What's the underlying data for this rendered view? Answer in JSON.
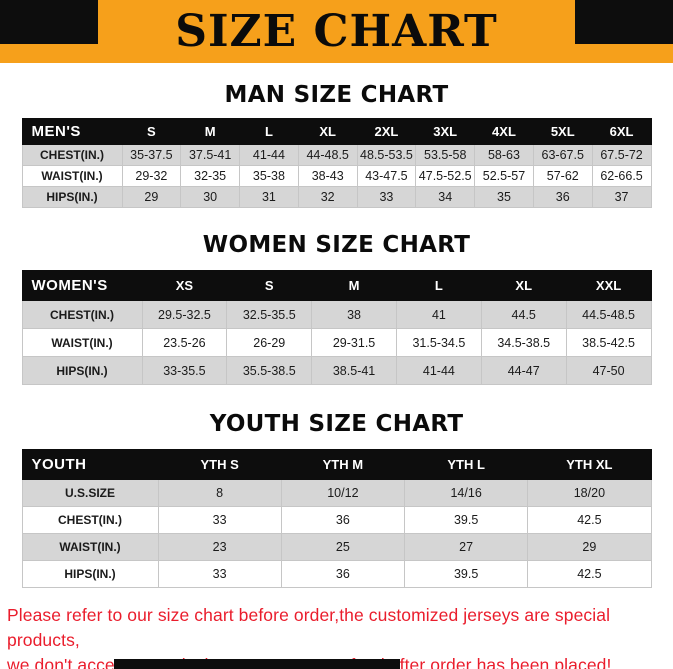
{
  "page": {
    "title": "SIZE CHART",
    "footer_line1": "Please refer to our size chart before order,the customized jerseys are special products,",
    "footer_line2": "we don't accept cancel, change, teturn or refund after order has been placed!"
  },
  "colors": {
    "banner_bg": "#f6a01b",
    "header_bg": "#0d0d0d",
    "row_alt_bg": "#d6d6d6",
    "footer_red": "#ea1d2c"
  },
  "chart_data": [
    {
      "type": "table",
      "title": "MAN SIZE CHART",
      "header": [
        "MEN'S",
        "S",
        "M",
        "L",
        "XL",
        "2XL",
        "3XL",
        "4XL",
        "5XL",
        "6XL"
      ],
      "rows": [
        [
          "CHEST(IN.)",
          "35-37.5",
          "37.5-41",
          "41-44",
          "44-48.5",
          "48.5-53.5",
          "53.5-58",
          "58-63",
          "63-67.5",
          "67.5-72"
        ],
        [
          "WAIST(IN.)",
          "29-32",
          "32-35",
          "35-38",
          "38-43",
          "43-47.5",
          "47.5-52.5",
          "52.5-57",
          "57-62",
          "62-66.5"
        ],
        [
          "HIPS(IN.)",
          "29",
          "30",
          "31",
          "32",
          "33",
          "34",
          "35",
          "36",
          "37"
        ]
      ]
    },
    {
      "type": "table",
      "title": "WOMEN SIZE CHART",
      "header": [
        "WOMEN'S",
        "XS",
        "S",
        "M",
        "L",
        "XL",
        "XXL"
      ],
      "rows": [
        [
          "CHEST(IN.)",
          "29.5-32.5",
          "32.5-35.5",
          "38",
          "41",
          "44.5",
          "44.5-48.5"
        ],
        [
          "WAIST(IN.)",
          "23.5-26",
          "26-29",
          "29-31.5",
          "31.5-34.5",
          "34.5-38.5",
          "38.5-42.5"
        ],
        [
          "HIPS(IN.)",
          "33-35.5",
          "35.5-38.5",
          "38.5-41",
          "41-44",
          "44-47",
          "47-50"
        ]
      ]
    },
    {
      "type": "table",
      "title": "YOUTH SIZE CHART",
      "header": [
        "YOUTH",
        "YTH S",
        "YTH M",
        "YTH L",
        "YTH XL"
      ],
      "rows": [
        [
          "U.S.SIZE",
          "8",
          "10/12",
          "14/16",
          "18/20"
        ],
        [
          "CHEST(IN.)",
          "33",
          "36",
          "39.5",
          "42.5"
        ],
        [
          "WAIST(IN.)",
          "23",
          "25",
          "27",
          "29"
        ],
        [
          "HIPS(IN.)",
          "33",
          "36",
          "39.5",
          "42.5"
        ]
      ]
    }
  ]
}
